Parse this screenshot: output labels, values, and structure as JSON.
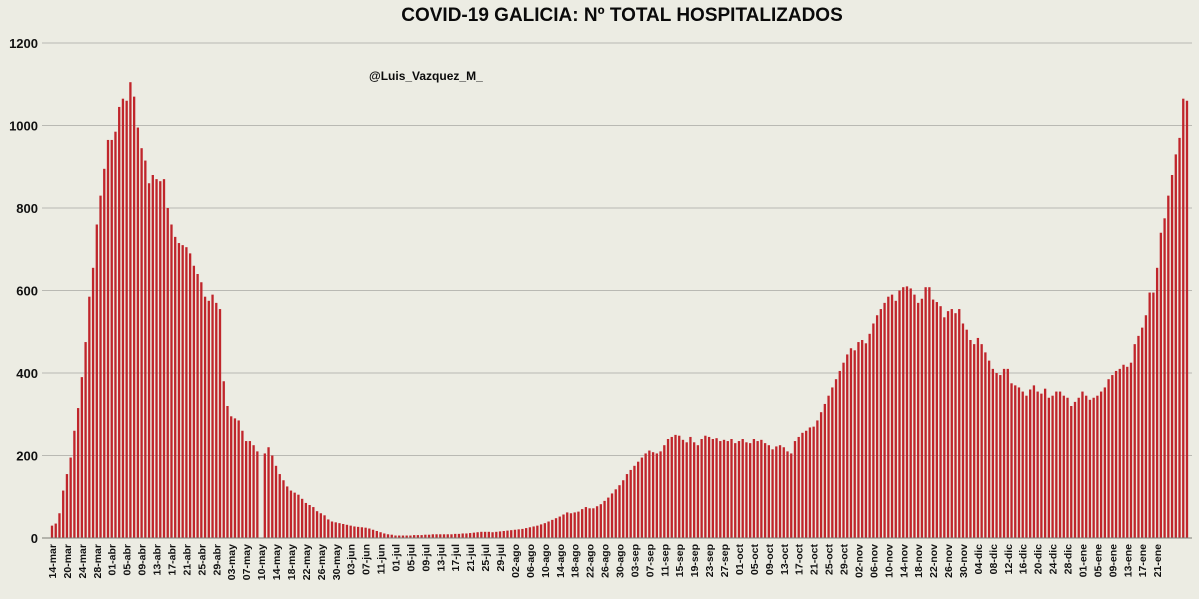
{
  "chart_data": {
    "type": "bar",
    "title": "COVID-19 GALICIA: Nº TOTAL HOSPITALIZADOS",
    "credit": "@Luis_Vazquez_M_",
    "xlabel": "",
    "ylabel": "",
    "ylim": [
      0,
      1200
    ],
    "yticks": [
      0,
      200,
      400,
      600,
      800,
      1000,
      1200
    ],
    "grid": true,
    "bar_color": "#c0252b",
    "start_date": "14-mar",
    "tick_step_days": 4,
    "tick_labels": [
      "14-mar",
      "20-mar",
      "24-mar",
      "28-mar",
      "01-abr",
      "05-abr",
      "09-abr",
      "13-abr",
      "17-abr",
      "21-abr",
      "25-abr",
      "29-abr",
      "03-may",
      "07-may",
      "10-may",
      "14-may",
      "18-may",
      "22-may",
      "26-may",
      "30-may",
      "03-jun",
      "07-jun",
      "11-jun",
      "01-jul",
      "05-jul",
      "09-jul",
      "13-jul",
      "17-jul",
      "21-jul",
      "25-jul",
      "29-jul",
      "02-ago",
      "06-ago",
      "10-ago",
      "14-ago",
      "18-ago",
      "22-ago",
      "26-ago",
      "30-ago",
      "03-sep",
      "07-sep",
      "11-sep",
      "15-sep",
      "19-sep",
      "23-sep",
      "27-sep",
      "01-oct",
      "05-oct",
      "09-oct",
      "13-oct",
      "17-oct",
      "21-oct",
      "25-oct",
      "29-oct",
      "02-nov",
      "06-nov",
      "10-nov",
      "14-nov",
      "18-nov",
      "22-nov",
      "26-nov",
      "30-nov",
      "04-dic",
      "08-dic",
      "12-dic",
      "16-dic",
      "20-dic",
      "24-dic",
      "28-dic",
      "01-ene",
      "05-ene",
      "09-ene",
      "13-ene",
      "17-ene",
      "21-ene"
    ],
    "values": [
      30,
      35,
      60,
      115,
      155,
      195,
      260,
      315,
      390,
      475,
      585,
      655,
      760,
      830,
      895,
      965,
      965,
      985,
      1045,
      1065,
      1060,
      1105,
      1070,
      995,
      945,
      915,
      860,
      880,
      870,
      865,
      870,
      800,
      760,
      730,
      715,
      710,
      705,
      690,
      660,
      640,
      620,
      585,
      575,
      590,
      570,
      555,
      380,
      320,
      295,
      290,
      285,
      260,
      235,
      235,
      225,
      210,
      0,
      205,
      220,
      200,
      175,
      155,
      140,
      125,
      115,
      110,
      105,
      95,
      85,
      80,
      75,
      65,
      60,
      55,
      45,
      40,
      38,
      36,
      34,
      32,
      30,
      28,
      27,
      26,
      25,
      23,
      20,
      17,
      14,
      11,
      9,
      8,
      6,
      6,
      6,
      6,
      6,
      7,
      7,
      7,
      8,
      8,
      9,
      9,
      9,
      9,
      9,
      9,
      10,
      10,
      11,
      11,
      12,
      13,
      14,
      15,
      15,
      15,
      14,
      15,
      16,
      17,
      18,
      19,
      20,
      21,
      22,
      24,
      26,
      28,
      30,
      33,
      36,
      40,
      44,
      48,
      52,
      57,
      62,
      60,
      62,
      64,
      70,
      75,
      72,
      72,
      77,
      82,
      90,
      98,
      108,
      118,
      128,
      140,
      155,
      165,
      175,
      185,
      195,
      205,
      212,
      208,
      205,
      210,
      225,
      240,
      245,
      250,
      248,
      238,
      232,
      245,
      232,
      225,
      240,
      248,
      245,
      240,
      242,
      235,
      238,
      235,
      240,
      230,
      235,
      240,
      232,
      230,
      240,
      235,
      238,
      230,
      225,
      215,
      222,
      225,
      220,
      210,
      205,
      235,
      245,
      255,
      260,
      268,
      270,
      285,
      305,
      325,
      345,
      365,
      385,
      405,
      425,
      445,
      460,
      455,
      475,
      480,
      472,
      495,
      520,
      540,
      555,
      570,
      585,
      590,
      575,
      600,
      608,
      610,
      605,
      590,
      570,
      580,
      608,
      608,
      578,
      572,
      562,
      535,
      550,
      555,
      545,
      555,
      520,
      505,
      480,
      470,
      485,
      470,
      450,
      430,
      410,
      400,
      395,
      410,
      410,
      375,
      370,
      365,
      355,
      345,
      360,
      370,
      355,
      350,
      362,
      340,
      345,
      355,
      355,
      345,
      340,
      320,
      330,
      340,
      355,
      345,
      335,
      340,
      345,
      355,
      365,
      385,
      395,
      405,
      410,
      420,
      415,
      425,
      470,
      490,
      510,
      540,
      595,
      595,
      655,
      740,
      775,
      830,
      880,
      930,
      970,
      1065,
      1060
    ]
  }
}
